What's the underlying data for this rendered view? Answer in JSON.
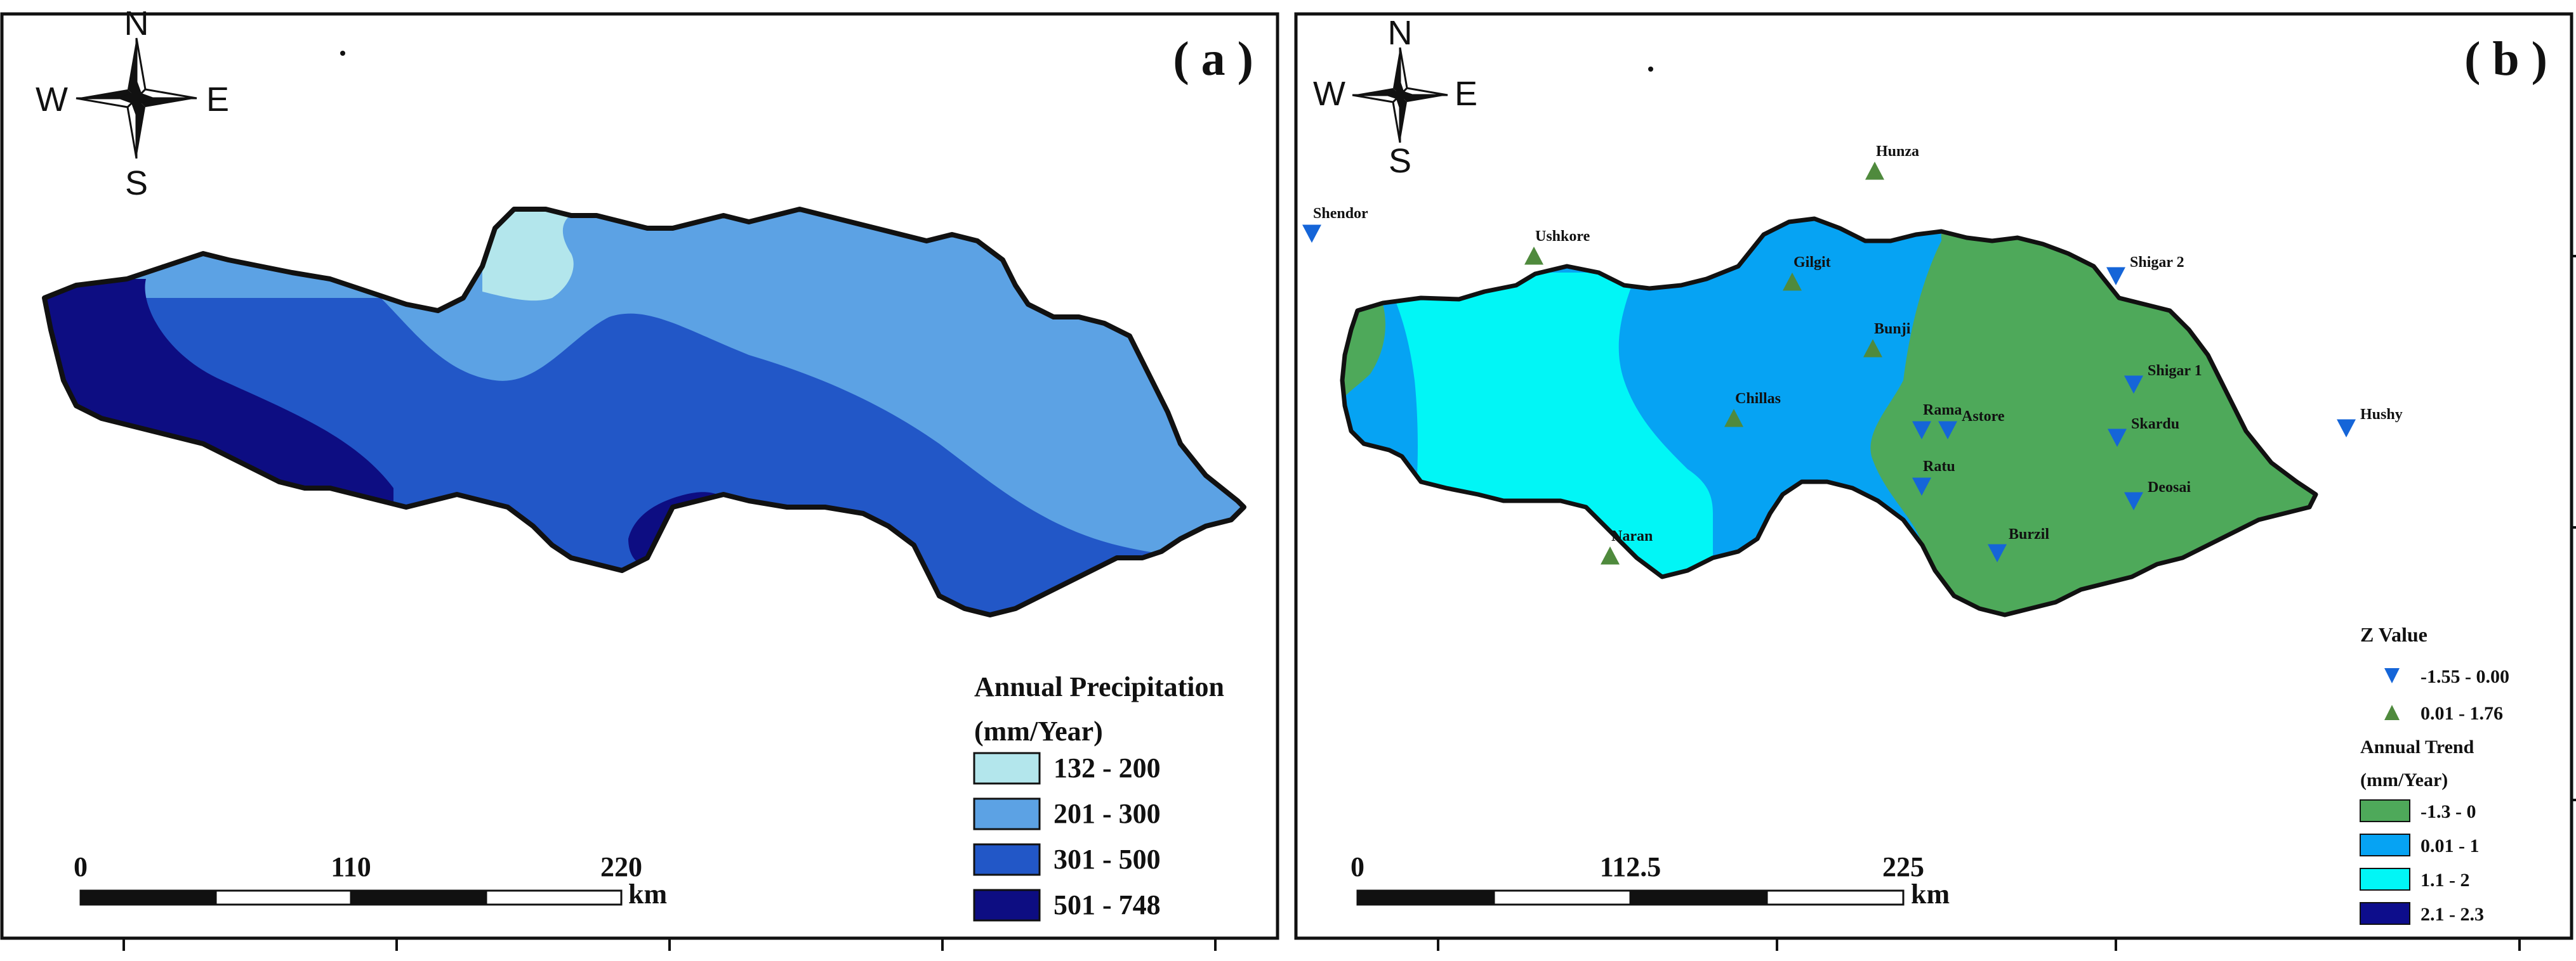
{
  "colors": {
    "background": "#ffffff",
    "outline": "#111111",
    "precip_132_200": "#b3e6ec",
    "precip_201_300": "#5ca2e4",
    "precip_301_500": "#2257c7",
    "precip_501_748": "#0d0d82",
    "trend_neg": "#4ea95a",
    "trend_0_1": "#06a3f3",
    "trend_1_2": "#01f6f6",
    "trend_2_2_3": "#0d0d8c",
    "marker_down": "#1565d8",
    "marker_up": "#4f8a3d"
  },
  "panel_a": {
    "label": "( a )",
    "compass": {
      "n": "N",
      "s": "S",
      "e": "E",
      "w": "W",
      "icon": "compass-rose-icon"
    },
    "legend": {
      "title_line1": "Annual Precipitation",
      "title_line2": "(mm/Year)",
      "items": [
        {
          "label": "132 - 200",
          "color": "#b3e6ec"
        },
        {
          "label": "201 - 300",
          "color": "#5ca2e4"
        },
        {
          "label": "301 - 500",
          "color": "#2257c7"
        },
        {
          "label": "501 - 748",
          "color": "#0d0d82"
        }
      ]
    },
    "scalebar": {
      "ticks": [
        "0",
        "110",
        "220"
      ],
      "unit": "km"
    }
  },
  "panel_b": {
    "label": "( b )",
    "compass": {
      "n": "N",
      "s": "S",
      "e": "E",
      "w": "W",
      "icon": "compass-rose-icon"
    },
    "legend": {
      "z_title": "Z Value",
      "z_items": [
        {
          "label": "-1.55 - 0.00",
          "marker": "triangle-down",
          "color": "#1565d8"
        },
        {
          "label": "0.01 - 1.76",
          "marker": "triangle-up",
          "color": "#4f8a3d"
        }
      ],
      "trend_title_line1": "Annual Trend",
      "trend_title_line2": "(mm/Year)",
      "trend_items": [
        {
          "label": "-1.3 - 0",
          "color": "#4ea95a"
        },
        {
          "label": "0.01 - 1",
          "color": "#06a3f3"
        },
        {
          "label": "1.1 - 2",
          "color": "#01f6f6"
        },
        {
          "label": "2.1 - 2.3",
          "color": "#0d0d8c"
        }
      ]
    },
    "scalebar": {
      "ticks": [
        "0",
        "112.5",
        "225"
      ],
      "unit": "km"
    },
    "stations": [
      {
        "name": "Hunza",
        "trend": "up"
      },
      {
        "name": "Shendor",
        "trend": "down"
      },
      {
        "name": "Ushkore",
        "trend": "up"
      },
      {
        "name": "Gilgit",
        "trend": "up"
      },
      {
        "name": "Shigar 2",
        "trend": "down"
      },
      {
        "name": "Bunji",
        "trend": "up"
      },
      {
        "name": "Shigar 1",
        "trend": "down"
      },
      {
        "name": "Chillas",
        "trend": "up"
      },
      {
        "name": "Rama",
        "trend": "down"
      },
      {
        "name": "Astore",
        "trend": "down"
      },
      {
        "name": "Skardu",
        "trend": "down"
      },
      {
        "name": "Hushy",
        "trend": "down"
      },
      {
        "name": "Ratu",
        "trend": "down"
      },
      {
        "name": "Deosai",
        "trend": "down"
      },
      {
        "name": "Burzil",
        "trend": "down"
      },
      {
        "name": "Naran",
        "trend": "up"
      }
    ]
  }
}
